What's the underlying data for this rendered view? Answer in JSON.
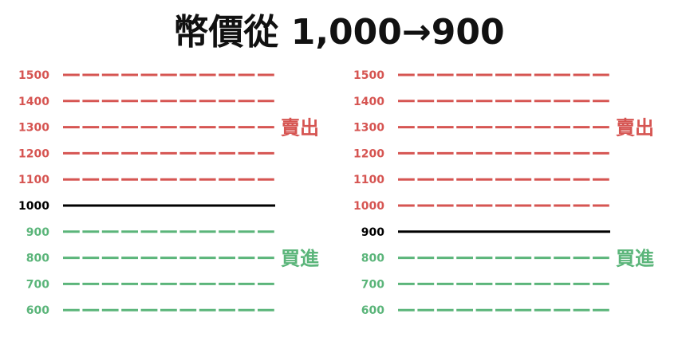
{
  "title": "幣價從 1,000→900",
  "colors": {
    "sell": "#d65552",
    "buy": "#5bb57a",
    "current": "#000000"
  },
  "panels": [
    {
      "levels": [
        "1500",
        "1400",
        "1300",
        "1200",
        "1100",
        "1000",
        "900",
        "800",
        "700",
        "600"
      ],
      "current": "1000",
      "sell_label": "賣出",
      "buy_label": "買進"
    },
    {
      "levels": [
        "1500",
        "1400",
        "1300",
        "1200",
        "1100",
        "1000",
        "900",
        "800",
        "700",
        "600"
      ],
      "current": "900",
      "sell_label": "賣出",
      "buy_label": "買進"
    }
  ]
}
